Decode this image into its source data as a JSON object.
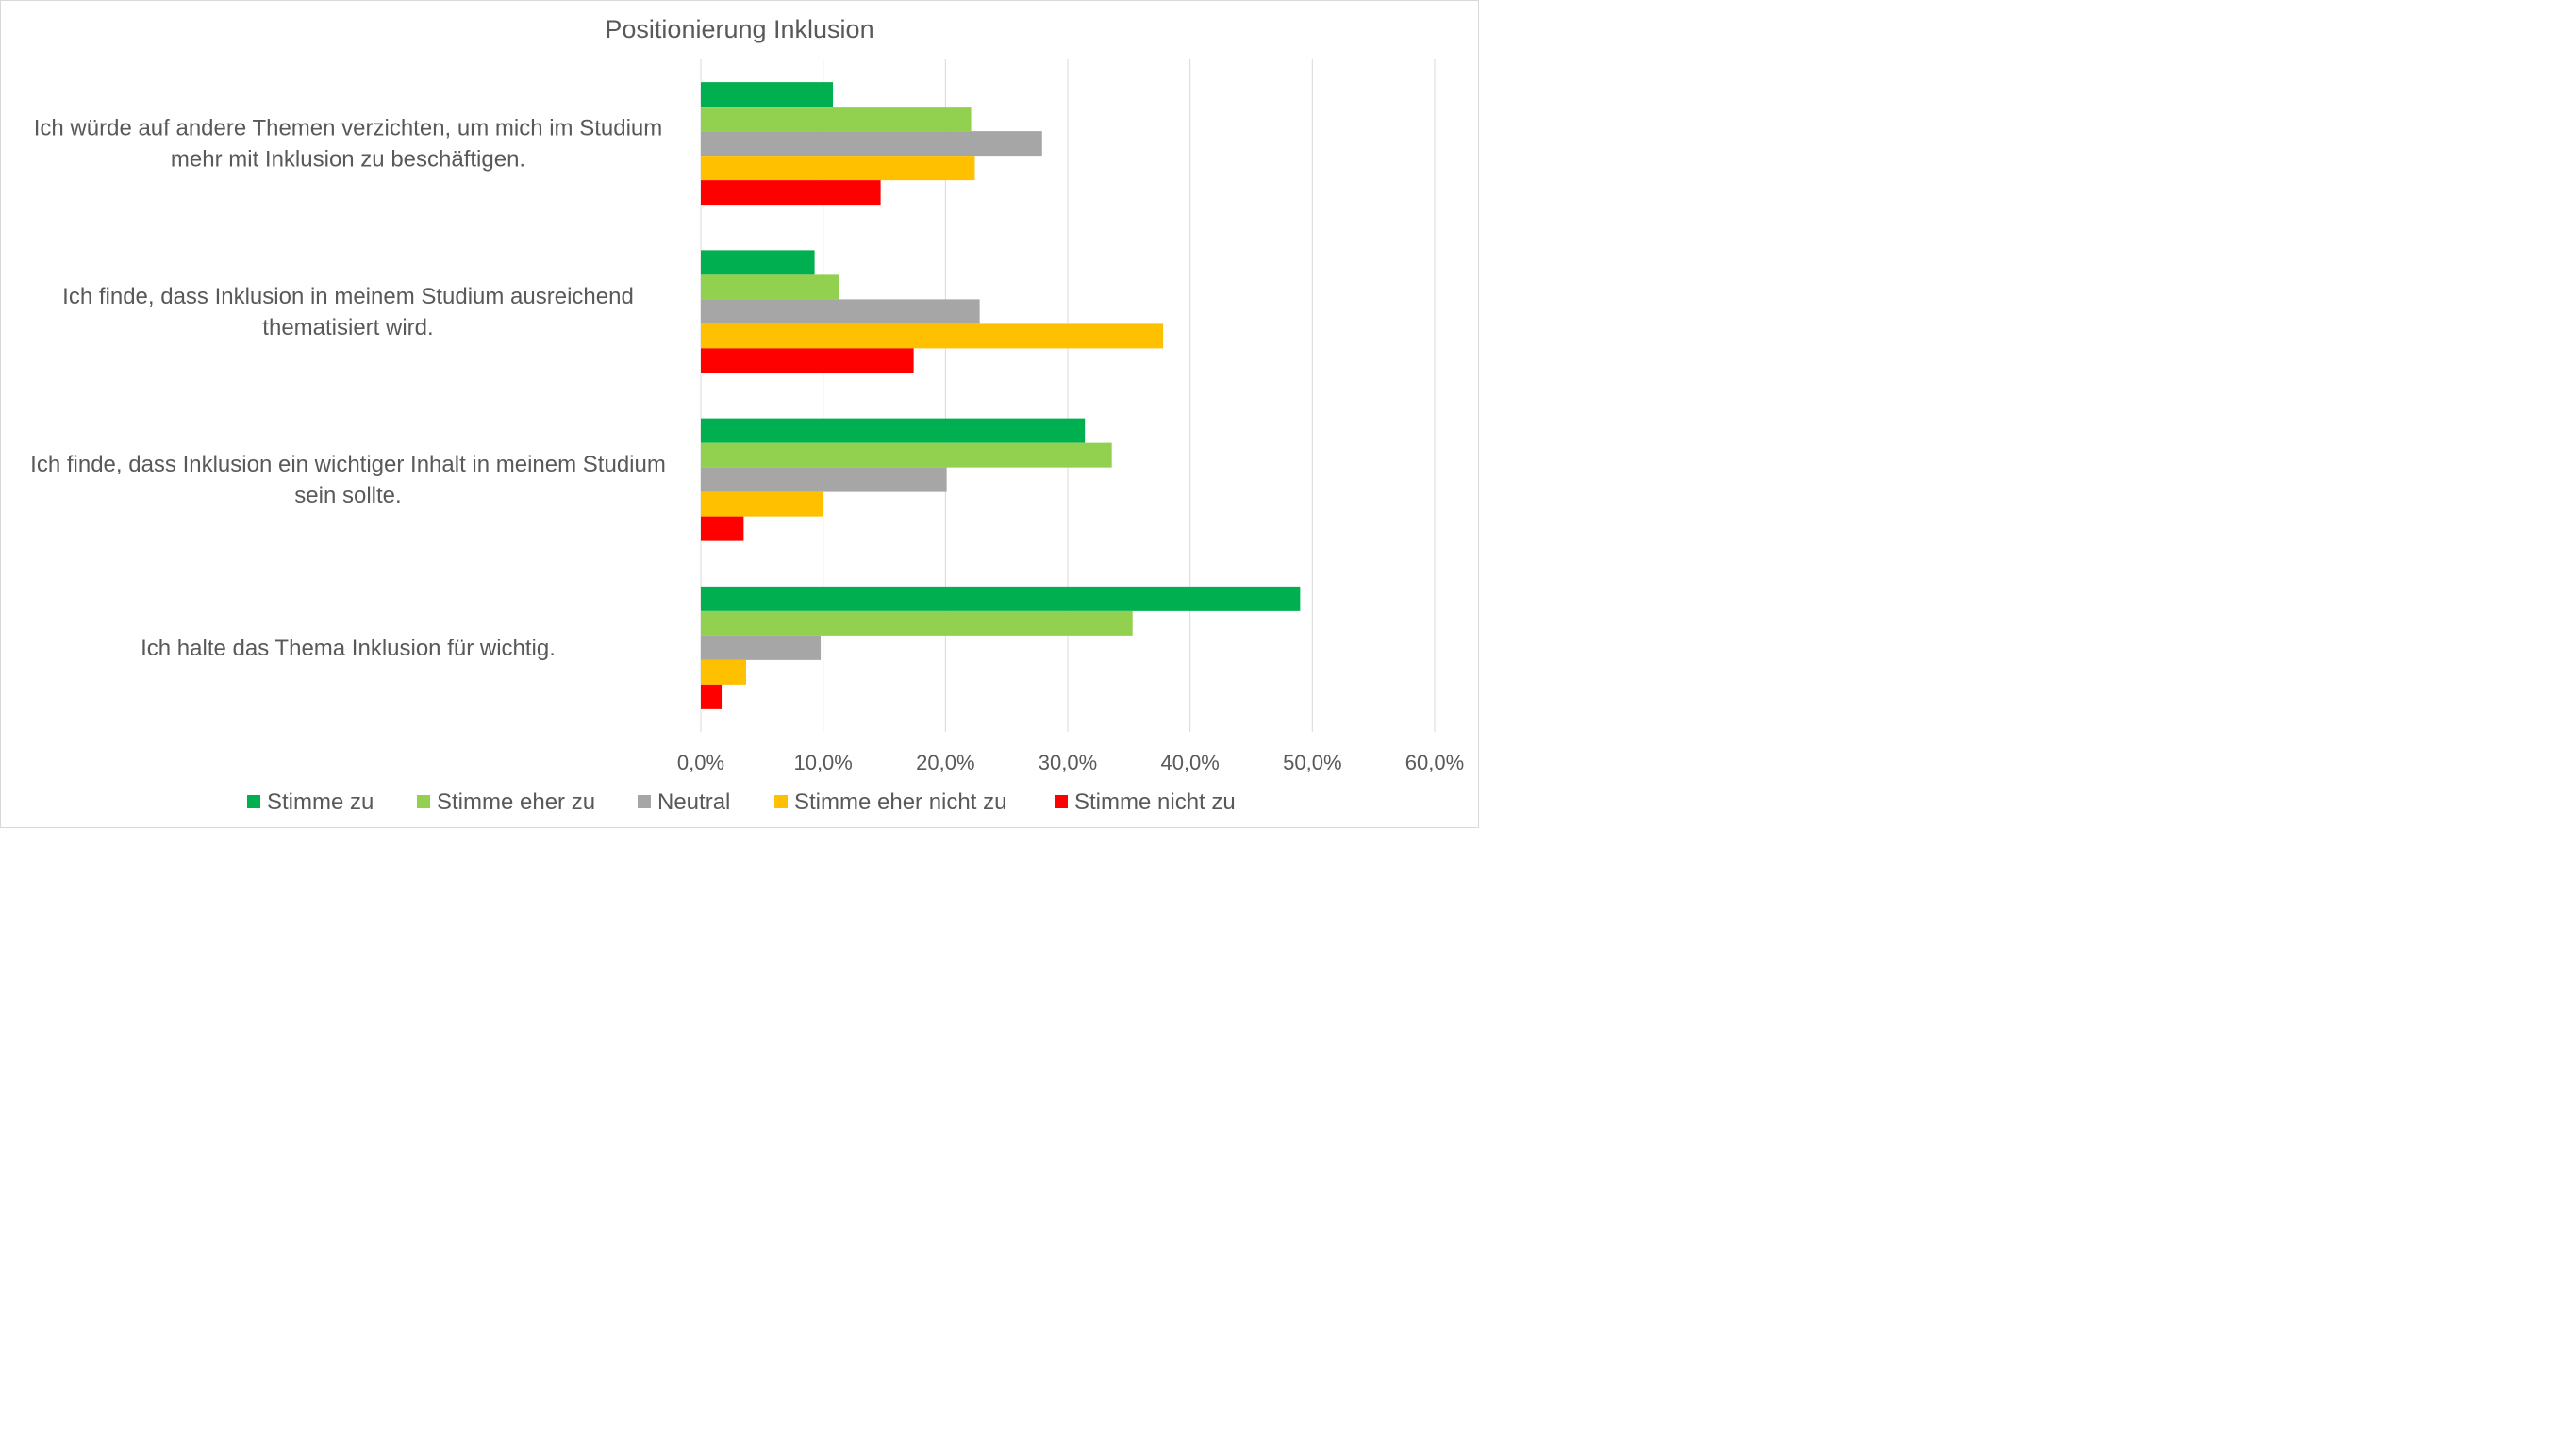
{
  "chart_data": {
    "type": "bar",
    "orientation": "horizontal",
    "title": "Positionierung Inklusion",
    "xlabel": "",
    "ylabel": "",
    "xlim": [
      0,
      60
    ],
    "x_ticks": [
      "0,0%",
      "10,0%",
      "20,0%",
      "30,0%",
      "40,0%",
      "50,0%",
      "60,0%"
    ],
    "grid": "vertical",
    "legend_position": "bottom",
    "categories": [
      {
        "lines": [
          "Ich würde auf andere Themen verzichten, um mich im Studium",
          "mehr mit Inklusion zu beschäftigen."
        ]
      },
      {
        "lines": [
          "Ich finde, dass Inklusion in meinem Studium ausreichend",
          "thematisiert wird."
        ]
      },
      {
        "lines": [
          "Ich finde, dass Inklusion ein wichtiger Inhalt in meinem Studium",
          "sein sollte."
        ]
      },
      {
        "lines": [
          "Ich halte das Thema Inklusion für wichtig."
        ]
      }
    ],
    "series": [
      {
        "name": "Stimme zu",
        "color": "#00b050",
        "values": [
          10.8,
          9.3,
          31.4,
          49.0
        ]
      },
      {
        "name": "Stimme eher zu",
        "color": "#92d050",
        "values": [
          22.1,
          11.3,
          33.6,
          35.3
        ]
      },
      {
        "name": "Neutral",
        "color": "#a6a6a6",
        "values": [
          27.9,
          22.8,
          20.1,
          9.8
        ]
      },
      {
        "name": "Stimme eher nicht zu",
        "color": "#ffc000",
        "values": [
          22.4,
          37.8,
          10.0,
          3.7
        ]
      },
      {
        "name": "Stimme nicht zu",
        "color": "#ff0000",
        "values": [
          14.7,
          17.4,
          3.5,
          1.7
        ]
      }
    ]
  }
}
